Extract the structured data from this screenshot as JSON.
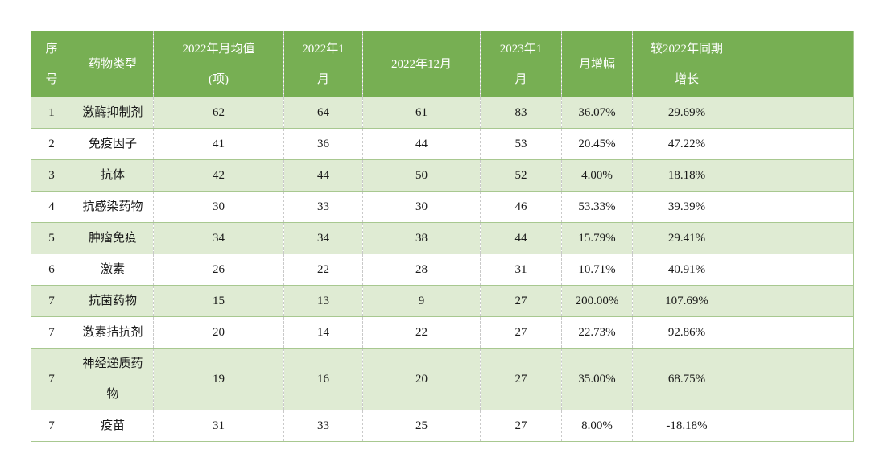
{
  "table": {
    "columns": [
      {
        "id": "seq-number",
        "label": "序\n号"
      },
      {
        "id": "drug-type",
        "label": "药物类型"
      },
      {
        "id": "monthly-avg-2022",
        "label": "2022年月均值\n(项)"
      },
      {
        "id": "jan-2022",
        "label": "2022年1\n月"
      },
      {
        "id": "dec-2022",
        "label": "2022年12月"
      },
      {
        "id": "jan-2023",
        "label": "2023年1\n月"
      },
      {
        "id": "month-growth",
        "label": "月增幅"
      },
      {
        "id": "yoy-growth",
        "label": "较2022年同期\n增长"
      },
      {
        "id": "blank",
        "label": ""
      }
    ],
    "rows": [
      [
        "1",
        "激酶抑制剂",
        "62",
        "64",
        "61",
        "83",
        "36.07%",
        "29.69%",
        ""
      ],
      [
        "2",
        "免疫因子",
        "41",
        "36",
        "44",
        "53",
        "20.45%",
        "47.22%",
        ""
      ],
      [
        "3",
        "抗体",
        "42",
        "44",
        "50",
        "52",
        "4.00%",
        "18.18%",
        ""
      ],
      [
        "4",
        "抗感染药物",
        "30",
        "33",
        "30",
        "46",
        "53.33%",
        "39.39%",
        ""
      ],
      [
        "5",
        "肿瘤免疫",
        "34",
        "34",
        "38",
        "44",
        "15.79%",
        "29.41%",
        ""
      ],
      [
        "6",
        "激素",
        "26",
        "22",
        "28",
        "31",
        "10.71%",
        "40.91%",
        ""
      ],
      [
        "7",
        "抗菌药物",
        "15",
        "13",
        "9",
        "27",
        "200.00%",
        "107.69%",
        ""
      ],
      [
        "7",
        "激素拮抗剂",
        "20",
        "14",
        "22",
        "27",
        "22.73%",
        "92.86%",
        ""
      ],
      [
        "7",
        "神经递质药\n物",
        "19",
        "16",
        "20",
        "27",
        "35.00%",
        "68.75%",
        ""
      ],
      [
        "7",
        "疫苗",
        "31",
        "33",
        "25",
        "27",
        "8.00%",
        "-18.18%",
        ""
      ]
    ],
    "colors": {
      "header_bg": "#77af53",
      "row_alt_bg": "#dfebd3",
      "row_bg": "#ffffff",
      "grid_line": "#a8c890",
      "column_divider": "#c9c9c9",
      "header_text": "#ffffff",
      "body_text": "#1a1a1a"
    }
  }
}
